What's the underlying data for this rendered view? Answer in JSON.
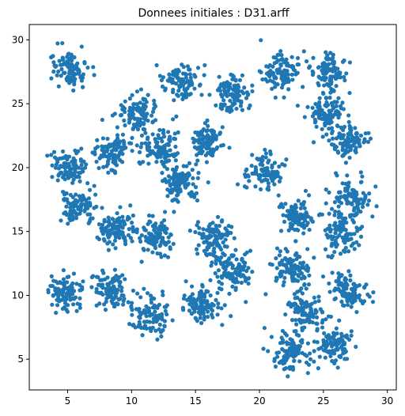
{
  "chart_data": {
    "type": "scatter",
    "title": "Donnees initiales : D31.arff",
    "xlabel": "",
    "ylabel": "",
    "xlim": [
      2.0,
      30.7
    ],
    "ylim": [
      2.6,
      31.2
    ],
    "x_ticks": [
      5,
      10,
      15,
      20,
      25,
      30
    ],
    "y_ticks": [
      5,
      10,
      15,
      20,
      25,
      30
    ],
    "grid": false,
    "legend": "none",
    "marker_color": "#1f77b4",
    "marker": "circle",
    "points_per_cluster": 100,
    "clusters": [
      {
        "center": [
          5.3,
          27.6
        ],
        "spread": 0.7
      },
      {
        "center": [
          13.9,
          26.7
        ],
        "spread": 0.7
      },
      {
        "center": [
          21.6,
          27.5
        ],
        "spread": 0.7
      },
      {
        "center": [
          25.3,
          27.5
        ],
        "spread": 0.7
      },
      {
        "center": [
          17.9,
          25.7
        ],
        "spread": 0.7
      },
      {
        "center": [
          10.4,
          24.4
        ],
        "spread": 0.7
      },
      {
        "center": [
          25.3,
          24.3
        ],
        "spread": 0.7
      },
      {
        "center": [
          15.8,
          22.0
        ],
        "spread": 0.7
      },
      {
        "center": [
          26.8,
          22.0
        ],
        "spread": 0.7
      },
      {
        "center": [
          8.6,
          21.4
        ],
        "spread": 0.7
      },
      {
        "center": [
          12.3,
          21.4
        ],
        "spread": 0.7
      },
      {
        "center": [
          5.0,
          20.1
        ],
        "spread": 0.7
      },
      {
        "center": [
          20.4,
          19.5
        ],
        "spread": 0.7
      },
      {
        "center": [
          13.8,
          18.8
        ],
        "spread": 0.7
      },
      {
        "center": [
          27.2,
          17.5
        ],
        "spread": 0.75
      },
      {
        "center": [
          5.9,
          17.0
        ],
        "spread": 0.75
      },
      {
        "center": [
          22.9,
          16.1
        ],
        "spread": 0.7
      },
      {
        "center": [
          8.8,
          15.2
        ],
        "spread": 0.7
      },
      {
        "center": [
          11.9,
          14.5
        ],
        "spread": 0.7
      },
      {
        "center": [
          16.5,
          14.6
        ],
        "spread": 0.75
      },
      {
        "center": [
          26.3,
          14.9
        ],
        "spread": 0.75
      },
      {
        "center": [
          22.5,
          11.9
        ],
        "spread": 0.75
      },
      {
        "center": [
          18.1,
          11.8
        ],
        "spread": 0.75
      },
      {
        "center": [
          4.9,
          10.3
        ],
        "spread": 0.7
      },
      {
        "center": [
          8.5,
          10.4
        ],
        "spread": 0.7
      },
      {
        "center": [
          27.0,
          10.3
        ],
        "spread": 0.7
      },
      {
        "center": [
          15.6,
          9.4
        ],
        "spread": 0.75
      },
      {
        "center": [
          11.5,
          8.4
        ],
        "spread": 0.7
      },
      {
        "center": [
          23.5,
          8.6
        ],
        "spread": 0.75
      },
      {
        "center": [
          22.3,
          5.7
        ],
        "spread": 0.7
      },
      {
        "center": [
          25.8,
          6.1
        ],
        "spread": 0.7
      }
    ]
  }
}
